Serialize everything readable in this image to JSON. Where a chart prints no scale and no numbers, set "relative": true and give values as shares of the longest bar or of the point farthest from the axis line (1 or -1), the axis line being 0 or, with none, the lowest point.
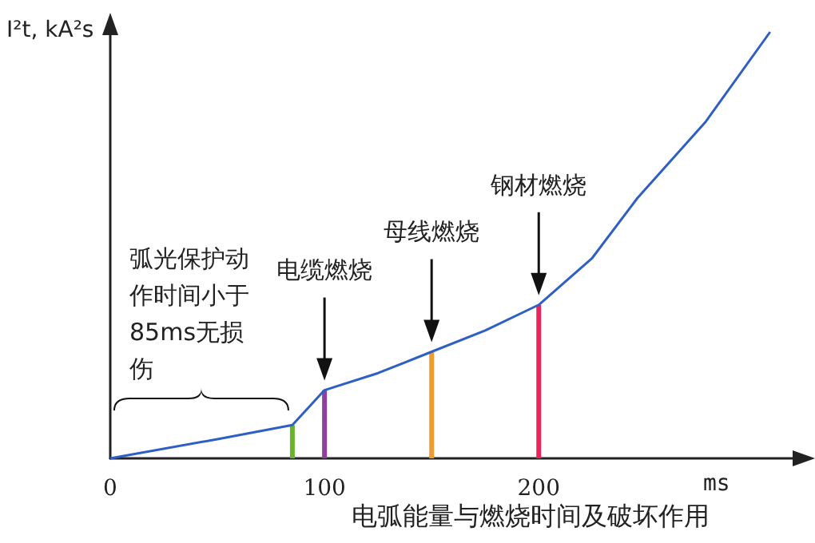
{
  "chart_data": {
    "type": "line",
    "relative": true,
    "title": "电弧能量与燃烧时间及破坏作用",
    "xlabel": "ms",
    "ylabel": "I²t, kA²s",
    "xlim": [
      0,
      320
    ],
    "xticks": [
      0,
      100,
      200
    ],
    "grid": false,
    "marker": "none",
    "line_style": "solid",
    "series": [
      {
        "color": "#2f5fc4",
        "x": [
          0,
          50,
          85,
          100,
          125,
          150,
          175,
          200,
          225,
          246,
          278,
          308
        ],
        "values": [
          0,
          0.045,
          0.078,
          0.16,
          0.2,
          0.25,
          0.3,
          0.36,
          0.47,
          0.61,
          0.79,
          1
        ]
      },
      {
        "type": "bar",
        "x": [
          85,
          100,
          150,
          200
        ],
        "values": [
          0.078,
          0.16,
          0.25,
          0.36
        ],
        "colors": [
          "#6ab42d",
          "#8e3fa0",
          "#f39a2e",
          "#e8245a"
        ]
      }
    ],
    "annotations": [
      "电缆燃烧",
      "母线燃烧",
      "钢材燃烧",
      "弧光保护动作时间小于85ms无损伤"
    ]
  }
}
